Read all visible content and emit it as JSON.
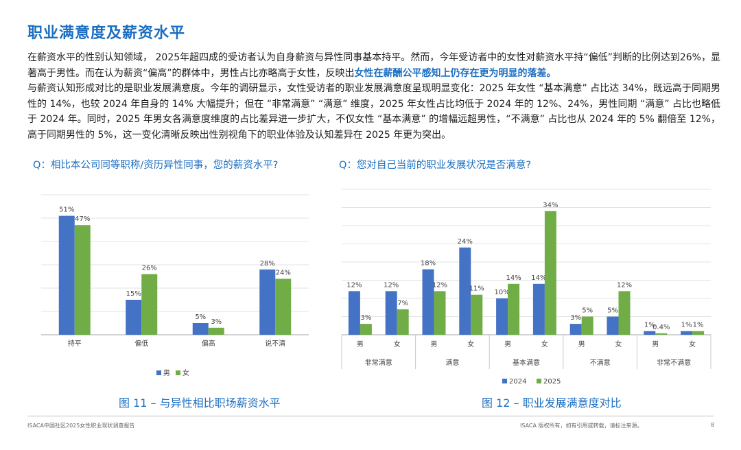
{
  "page": {
    "title": "职业满意度及薪资水平",
    "paragraph1_part1": "在薪资水平的性别认知领域， 2025年超四成的受访者认为自身薪资与异性同事基本持平。然而，今年受访者中的女性对薪资水平持“偏低”判断的比例达到26%，显著高于男性。而在认为薪资“偏高”的群体中，男性占比亦略高于女性，反映出",
    "paragraph1_highlight": "女性在薪酬公平感知上仍存在更为明显的落差。",
    "paragraph2": "与薪资认知形成对比的是职业发展满意度。今年的调研显示，女性受访者的职业发展满意度呈现明显变化：2025 年女性 “基本满意” 占比达 34%，既远高于同期男性的 14%，也较 2024 年自身的 14% 大幅提升；但在 “非常满意” “满意” 维度，2025 年女性占比均低于 2024 年的 12%、24%，男性同期 “满意” 占比也略低于 2024 年。同时，2025 年男女各满意度维度的占比差异进一步扩大，不仅女性 “基本满意” 的增幅远超男性，“不满意” 占比也从 2024 年的 5% 翻倍至 12%，高于同期男性的 5%，这一变化清晰反映出性别视角下的职业体验及认知差异在 2025 年更为突出。",
    "question_left": "Q：相比本公司同等职称/资历异性同事，您的薪资水平?",
    "question_right": "Q：您对自己当前的职业发展状况是否满意?",
    "caption_left": "图 11 – 与异性相比职场薪资水平",
    "caption_right": "图 12 – 职业发展满意度对比",
    "footer_left": "ISACA中国社区2025女性职业现状调查报告",
    "footer_right": "ISACA 版权所有，如有引用或转载，请标注来源。",
    "page_number": "8"
  },
  "chart_data": [
    {
      "type": "bar",
      "categories": [
        "持平",
        "偏低",
        "偏高",
        "说不清"
      ],
      "series": [
        {
          "name": "男",
          "values": [
            51,
            15,
            5,
            28
          ],
          "labels": [
            "51%",
            "15%",
            "5%",
            "28%"
          ],
          "color": "#4472c4"
        },
        {
          "name": "女",
          "values": [
            47,
            26,
            3,
            24
          ],
          "labels": [
            "47%",
            "26%",
            "3%",
            "24%"
          ],
          "color": "#70ad47"
        }
      ],
      "ylim": [
        0,
        60
      ],
      "grid": true,
      "legend": "bottom-center"
    },
    {
      "type": "bar",
      "groups": [
        "非常满意",
        "满意",
        "基本满意",
        "不满意",
        "非常不满意"
      ],
      "subcategories": [
        "男",
        "女"
      ],
      "series": [
        {
          "name": "2024",
          "values": [
            12,
            12,
            18,
            24,
            10,
            14,
            3,
            5,
            1,
            1
          ],
          "labels": [
            "12%",
            "12%",
            "18%",
            "24%",
            "10%",
            "14%",
            "3%",
            "5%",
            "1%",
            "1%"
          ],
          "color": "#4472c4"
        },
        {
          "name": "2025",
          "values": [
            3,
            7,
            12,
            11,
            14,
            34,
            5,
            12,
            0.4,
            1
          ],
          "labels": [
            "3%",
            "7%",
            "12%",
            "11%",
            "14%",
            "34%",
            "5%",
            "12%",
            "0.4%",
            "1%"
          ],
          "color": "#70ad47"
        }
      ],
      "ylim": [
        0,
        40
      ],
      "grid": true,
      "legend": "bottom-center"
    }
  ]
}
